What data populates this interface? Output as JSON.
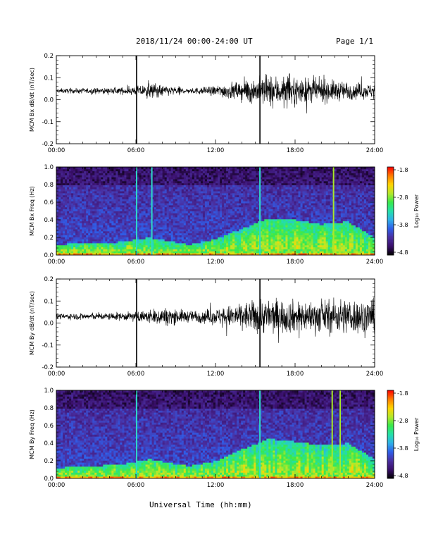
{
  "header": {
    "title": "2018/11/24  00:00-24:00 UT",
    "page": "Page 1/1"
  },
  "xlabel": "Universal Time (hh:mm)",
  "colors": {
    "trace": "#000000",
    "colormap": [
      "#000000",
      "#3a0f6b",
      "#4a2fa0",
      "#2f5de8",
      "#2fb0e8",
      "#23e0a8",
      "#39e84a",
      "#b5e82a",
      "#ffd400",
      "#ff7a00",
      "#ff0000"
    ]
  },
  "chart_data": [
    {
      "type": "line",
      "ylabel": "MCM Bx dB/dt (nT/sec)",
      "x_ticks": [
        "00:00",
        "06:00",
        "12:00",
        "18:00",
        "24:00"
      ],
      "y_ticks": [
        "0.2",
        "0.1",
        "0.0",
        "-0.1",
        "-0.2"
      ],
      "xlim": [
        0,
        24
      ],
      "ylim": [
        -0.2,
        0.2
      ],
      "baseline": 0.04,
      "envelope": [
        {
          "t": 0,
          "amp": 0.01
        },
        {
          "t": 3,
          "amp": 0.012
        },
        {
          "t": 5,
          "amp": 0.015
        },
        {
          "t": 6,
          "amp": 0.02
        },
        {
          "t": 7,
          "amp": 0.035
        },
        {
          "t": 8,
          "amp": 0.025
        },
        {
          "t": 10,
          "amp": 0.012
        },
        {
          "t": 11.5,
          "amp": 0.018
        },
        {
          "t": 13,
          "amp": 0.035
        },
        {
          "t": 14.5,
          "amp": 0.05
        },
        {
          "t": 16,
          "amp": 0.07
        },
        {
          "t": 18,
          "amp": 0.06
        },
        {
          "t": 20,
          "amp": 0.05
        },
        {
          "t": 22,
          "amp": 0.04
        },
        {
          "t": 24,
          "amp": 0.03
        }
      ],
      "spikes": [
        {
          "t": 6.05,
          "min": -0.2,
          "max": 0.2
        },
        {
          "t": 15.35,
          "min": -0.2,
          "max": 0.2
        }
      ]
    },
    {
      "type": "heatmap",
      "ylabel": "MCM Bx Freq (Hz)",
      "x_ticks": [
        "00:00",
        "06:00",
        "12:00",
        "18:00",
        "24:00"
      ],
      "y_ticks": [
        "1.0",
        "0.8",
        "0.6",
        "0.4",
        "0.2",
        "0.0"
      ],
      "xlim": [
        0,
        24
      ],
      "ylim": [
        0,
        1.0
      ],
      "colorbar": {
        "label": "Log₁₀ Power",
        "ticks": [
          "-1.8",
          "-2.8",
          "-3.8",
          "-4.8"
        ],
        "range": [
          -4.8,
          -1.8
        ]
      },
      "activity": [
        {
          "t": 0,
          "level": 0.12
        },
        {
          "t": 5,
          "level": 0.15
        },
        {
          "t": 7,
          "level": 0.2
        },
        {
          "t": 10,
          "level": 0.12
        },
        {
          "t": 12,
          "level": 0.18
        },
        {
          "t": 14,
          "level": 0.3
        },
        {
          "t": 16,
          "level": 0.42
        },
        {
          "t": 18,
          "level": 0.4
        },
        {
          "t": 20,
          "level": 0.35
        },
        {
          "t": 22,
          "level": 0.38
        },
        {
          "t": 24,
          "level": 0.2
        }
      ],
      "vertical_lines": [
        6.05,
        7.2,
        15.35,
        20.9
      ]
    },
    {
      "type": "line",
      "ylabel": "MCM By dB/dt (nT/sec)",
      "x_ticks": [
        "00:00",
        "06:00",
        "12:00",
        "18:00",
        "24:00"
      ],
      "y_ticks": [
        "0.2",
        "0.1",
        "0.0",
        "-0.1",
        "-0.2"
      ],
      "xlim": [
        0,
        24
      ],
      "ylim": [
        -0.2,
        0.2
      ],
      "baseline": 0.03,
      "envelope": [
        {
          "t": 0,
          "amp": 0.012
        },
        {
          "t": 3,
          "amp": 0.015
        },
        {
          "t": 5,
          "amp": 0.018
        },
        {
          "t": 6,
          "amp": 0.02
        },
        {
          "t": 8,
          "amp": 0.04
        },
        {
          "t": 10,
          "amp": 0.025
        },
        {
          "t": 12,
          "amp": 0.035
        },
        {
          "t": 14,
          "amp": 0.06
        },
        {
          "t": 16,
          "amp": 0.08
        },
        {
          "t": 18,
          "amp": 0.07
        },
        {
          "t": 20,
          "amp": 0.07
        },
        {
          "t": 22,
          "amp": 0.08
        },
        {
          "t": 24,
          "amp": 0.07
        }
      ],
      "spikes": [
        {
          "t": 6.05,
          "min": -0.2,
          "max": 0.2
        },
        {
          "t": 15.35,
          "min": -0.2,
          "max": 0.2
        }
      ]
    },
    {
      "type": "heatmap",
      "ylabel": "MCM By Freq (Hz)",
      "x_ticks": [
        "00:00",
        "06:00",
        "12:00",
        "18:00",
        "24:00"
      ],
      "y_ticks": [
        "1.0",
        "0.8",
        "0.6",
        "0.4",
        "0.2",
        "0.0"
      ],
      "xlim": [
        0,
        24
      ],
      "ylim": [
        0,
        1.0
      ],
      "colorbar": {
        "label": "Log₁₀ Power",
        "ticks": [
          "-1.8",
          "-2.8",
          "-3.8",
          "-4.8"
        ],
        "range": [
          -4.8,
          -1.8
        ]
      },
      "activity": [
        {
          "t": 0,
          "level": 0.12
        },
        {
          "t": 5,
          "level": 0.16
        },
        {
          "t": 7,
          "level": 0.22
        },
        {
          "t": 10,
          "level": 0.14
        },
        {
          "t": 12,
          "level": 0.2
        },
        {
          "t": 14,
          "level": 0.33
        },
        {
          "t": 16,
          "level": 0.45
        },
        {
          "t": 18,
          "level": 0.42
        },
        {
          "t": 20,
          "level": 0.38
        },
        {
          "t": 22,
          "level": 0.4
        },
        {
          "t": 24,
          "level": 0.22
        }
      ],
      "vertical_lines": [
        6.05,
        15.35,
        20.8,
        21.4
      ]
    }
  ]
}
